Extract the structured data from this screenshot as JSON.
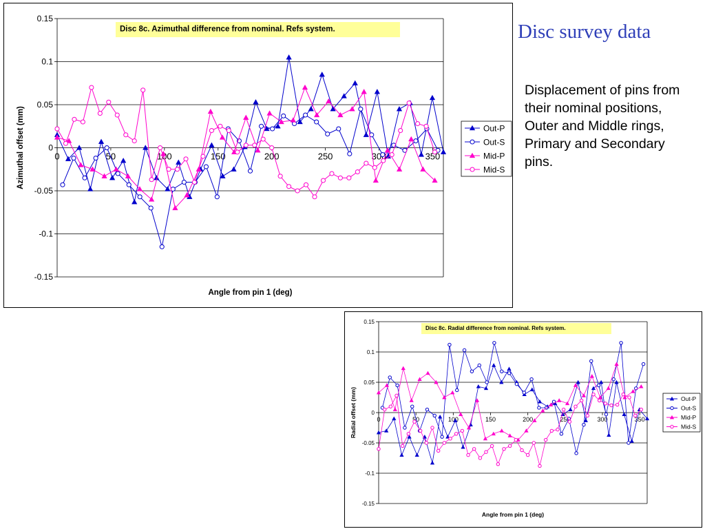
{
  "slide": {
    "title": "Disc survey data",
    "description": "Displacement of pins from their nominal positions, Outer and Middle rings, Primary and Secondary pins."
  },
  "colors": {
    "out": "#0000cc",
    "mid": "#ff00cc",
    "title_box": "#ffff99",
    "slide_title": "#2f3fb8"
  },
  "chart_data": [
    {
      "type": "line",
      "title": "Disc 8c. Azimuthal difference from nominal. Refs system.",
      "xlabel": "Angle from pin 1 (deg)",
      "ylabel": "Azimuthal offset (mm)",
      "xlim": [
        0,
        360
      ],
      "ylim": [
        -0.15,
        0.15
      ],
      "x_ticks": [
        "0",
        "50",
        "100",
        "150",
        "200",
        "250",
        "300",
        "350"
      ],
      "y_ticks": [
        "0.15",
        "0.1",
        "0.05",
        "0",
        "-0.05",
        "-0.1",
        "-0.15"
      ],
      "grid": "horizontal",
      "legend_position": "right",
      "series": [
        {
          "name": "Out-P",
          "marker": "filled-triangle",
          "color": "#0000cc",
          "x": [
            0,
            10.3,
            20.6,
            30.9,
            41.1,
            51.4,
            61.7,
            72,
            82.3,
            92.6,
            102.9,
            113.1,
            123.4,
            133.7,
            144,
            154.3,
            164.6,
            174.9,
            185.1,
            195.4,
            205.7,
            216,
            226.3,
            236.6,
            246.9,
            257.1,
            267.4,
            277.7,
            288,
            298.3,
            308.6,
            318.9,
            329.1,
            339.4,
            349.7,
            360
          ],
          "y": [
            0.015,
            -0.013,
            0,
            -0.048,
            0.007,
            -0.035,
            -0.015,
            -0.063,
            0,
            -0.035,
            -0.048,
            -0.017,
            -0.057,
            -0.025,
            0.003,
            -0.033,
            -0.025,
            0.001,
            0.053,
            0.022,
            0.025,
            0.105,
            0.03,
            0.045,
            0.085,
            0.045,
            0.06,
            0.075,
            0.015,
            0.065,
            -0.01,
            0.045,
            0.052,
            -0.008,
            0.058,
            -0.005
          ]
        },
        {
          "name": "Out-S",
          "marker": "open-circle",
          "color": "#0000cc",
          "x": [
            5.1,
            15.4,
            25.7,
            36,
            46.3,
            56.6,
            66.9,
            77.1,
            87.4,
            97.7,
            108,
            118.3,
            128.6,
            138.9,
            149.1,
            159.4,
            169.7,
            180,
            190.3,
            200.6,
            210.9,
            221.1,
            231.4,
            241.7,
            252,
            262.3,
            272.6,
            282.9,
            293.1,
            303.4,
            313.7,
            324,
            334.3,
            344.6,
            354.9
          ],
          "y": [
            -0.043,
            -0.012,
            -0.035,
            -0.012,
            0,
            -0.03,
            -0.043,
            -0.057,
            -0.07,
            -0.115,
            -0.048,
            -0.04,
            -0.04,
            -0.022,
            -0.057,
            0.022,
            0.008,
            -0.027,
            0.025,
            0.022,
            0.037,
            0.028,
            0.038,
            0.03,
            0.016,
            0.022,
            -0.007,
            0.045,
            0.015,
            -0.008,
            0.003,
            -0.003,
            0.008,
            0.022,
            -0.003
          ]
        },
        {
          "name": "Mid-P",
          "marker": "filled-triangle",
          "color": "#ff00cc",
          "x": [
            0,
            11,
            22,
            33,
            44,
            55,
            66,
            77,
            88,
            99,
            110,
            121,
            132,
            143,
            154,
            165,
            176,
            187,
            198,
            209,
            220,
            231,
            242,
            253,
            264,
            275,
            286,
            297,
            308,
            319,
            330,
            341,
            352
          ],
          "y": [
            0.012,
            0.008,
            -0.02,
            -0.025,
            -0.033,
            -0.025,
            -0.033,
            -0.048,
            -0.06,
            -0.007,
            -0.07,
            -0.055,
            -0.025,
            0.042,
            0.012,
            -0.005,
            0.035,
            -0.003,
            0.04,
            0.03,
            0.032,
            0.07,
            0.038,
            0.054,
            0.038,
            0.045,
            0.065,
            -0.038,
            -0.003,
            -0.025,
            0.01,
            -0.025,
            -0.038
          ]
        },
        {
          "name": "Mid-S",
          "marker": "open-circle",
          "color": "#ff00cc",
          "x": [
            0,
            8,
            16,
            24,
            32,
            40,
            48,
            56,
            64,
            72,
            80,
            88,
            96,
            104,
            112,
            120,
            128,
            136,
            144,
            152,
            160,
            168,
            176,
            184,
            192,
            200,
            208,
            216,
            224,
            232,
            240,
            248,
            256,
            264,
            272,
            280,
            288,
            296,
            304,
            312,
            320,
            328,
            336,
            344,
            352
          ],
          "y": [
            0.022,
            0.005,
            0.033,
            0.03,
            0.07,
            0.04,
            0.053,
            0.038,
            0.015,
            0.008,
            0.067,
            -0.037,
            0,
            -0.025,
            -0.025,
            -0.013,
            -0.04,
            -0.01,
            0.02,
            0.025,
            0.02,
            -0.005,
            0.003,
            0.003,
            0.01,
            0,
            -0.033,
            -0.045,
            -0.05,
            -0.043,
            -0.057,
            -0.038,
            -0.03,
            -0.035,
            -0.035,
            -0.028,
            -0.018,
            -0.023,
            -0.015,
            -0.008,
            0.02,
            0.052,
            0.028,
            0.025,
            -0.005
          ]
        }
      ]
    },
    {
      "type": "line",
      "title": "Disc 8c. Radial difference from nominal. Refs system.",
      "xlabel": "Angle from pin 1 (deg)",
      "ylabel": "Radial offset (mm)",
      "xlim": [
        0,
        360
      ],
      "ylim": [
        -0.15,
        0.15
      ],
      "x_ticks": [
        "0",
        "50",
        "100",
        "150",
        "200",
        "250",
        "300",
        "350"
      ],
      "y_ticks": [
        "0.15",
        "0.1",
        "0.05",
        "0",
        "-0.05",
        "-0.1",
        "-0.15"
      ],
      "grid": "horizontal",
      "legend_position": "right",
      "series": [
        {
          "name": "Out-P",
          "marker": "filled-triangle",
          "color": "#0000cc",
          "x": [
            0,
            10.3,
            20.6,
            30.9,
            41.1,
            51.4,
            61.7,
            72,
            82.3,
            92.6,
            102.9,
            113.1,
            123.4,
            133.7,
            144,
            154.3,
            164.6,
            174.9,
            185.1,
            195.4,
            205.7,
            216,
            226.3,
            236.6,
            246.9,
            257.1,
            267.4,
            277.7,
            288,
            298.3,
            308.6,
            318.9,
            329.1,
            339.4,
            349.7,
            360
          ],
          "y": [
            -0.033,
            -0.03,
            -0.01,
            -0.07,
            -0.04,
            -0.07,
            -0.04,
            -0.083,
            -0.007,
            -0.04,
            -0.013,
            -0.057,
            -0.02,
            0.043,
            0.04,
            0.078,
            0.05,
            0.072,
            0.05,
            0.03,
            0.038,
            0.018,
            0.01,
            0.015,
            -0.003,
            0.005,
            0.05,
            -0.013,
            0.04,
            0.05,
            -0.037,
            0.05,
            -0.003,
            -0.047,
            0.005,
            -0.01
          ]
        },
        {
          "name": "Out-S",
          "marker": "open-circle",
          "color": "#0000cc",
          "x": [
            5,
            15,
            25,
            35,
            45,
            55,
            65,
            75,
            85,
            95,
            105,
            115,
            125,
            135,
            145,
            155,
            165,
            175,
            185,
            195,
            205,
            215,
            225,
            235,
            245,
            255,
            265,
            275,
            285,
            295,
            305,
            315,
            325,
            335,
            345,
            355
          ],
          "y": [
            0.008,
            0.058,
            0.045,
            -0.025,
            0.01,
            -0.03,
            0.005,
            -0.005,
            -0.04,
            0.112,
            0.037,
            0.103,
            0.068,
            0.078,
            0.05,
            0.115,
            0.068,
            0.065,
            0.047,
            0.033,
            0.055,
            0.008,
            0.008,
            0.018,
            -0.035,
            -0.01,
            -0.067,
            -0.02,
            0.085,
            0.045,
            -0.003,
            0.055,
            0.115,
            -0.05,
            0.04,
            0.08
          ]
        },
        {
          "name": "Mid-P",
          "marker": "filled-triangle",
          "color": "#ff00cc",
          "x": [
            0,
            11,
            22,
            33,
            44,
            55,
            66,
            77,
            88,
            99,
            110,
            121,
            132,
            143,
            154,
            165,
            176,
            187,
            198,
            209,
            220,
            231,
            242,
            253,
            264,
            275,
            286,
            297,
            308,
            319,
            330,
            341,
            352
          ],
          "y": [
            0.033,
            0.045,
            0.005,
            0.073,
            0.02,
            0.055,
            0.065,
            0.05,
            0.025,
            0.033,
            -0.003,
            -0.025,
            0.02,
            -0.043,
            -0.035,
            -0.03,
            -0.038,
            -0.045,
            -0.03,
            -0.013,
            0.003,
            0.013,
            0.02,
            0.015,
            0.045,
            0.028,
            0.06,
            0.025,
            0.04,
            0.08,
            0.025,
            0.035,
            0.043
          ]
        },
        {
          "name": "Mid-S",
          "marker": "open-circle",
          "color": "#ff00cc",
          "x": [
            0,
            8,
            16,
            24,
            32,
            40,
            48,
            56,
            64,
            72,
            80,
            88,
            96,
            104,
            112,
            120,
            128,
            136,
            144,
            152,
            160,
            168,
            176,
            184,
            192,
            200,
            208,
            216,
            224,
            232,
            240,
            248,
            256,
            264,
            272,
            280,
            288,
            296,
            304,
            312,
            320,
            328,
            336,
            344,
            352
          ],
          "y": [
            -0.06,
            0.005,
            0.01,
            0.028,
            -0.055,
            -0.035,
            -0.015,
            -0.03,
            -0.05,
            -0.025,
            -0.063,
            -0.05,
            -0.043,
            -0.035,
            -0.03,
            -0.07,
            -0.06,
            -0.075,
            -0.065,
            -0.055,
            -0.085,
            -0.06,
            -0.055,
            -0.045,
            -0.062,
            -0.07,
            -0.05,
            -0.088,
            -0.045,
            -0.03,
            -0.028,
            0.005,
            -0.015,
            0.01,
            0.02,
            -0.005,
            0.03,
            0.02,
            0.015,
            0.012,
            0.013,
            0.03,
            0.025,
            -0.005,
            0.005
          ]
        }
      ]
    }
  ]
}
